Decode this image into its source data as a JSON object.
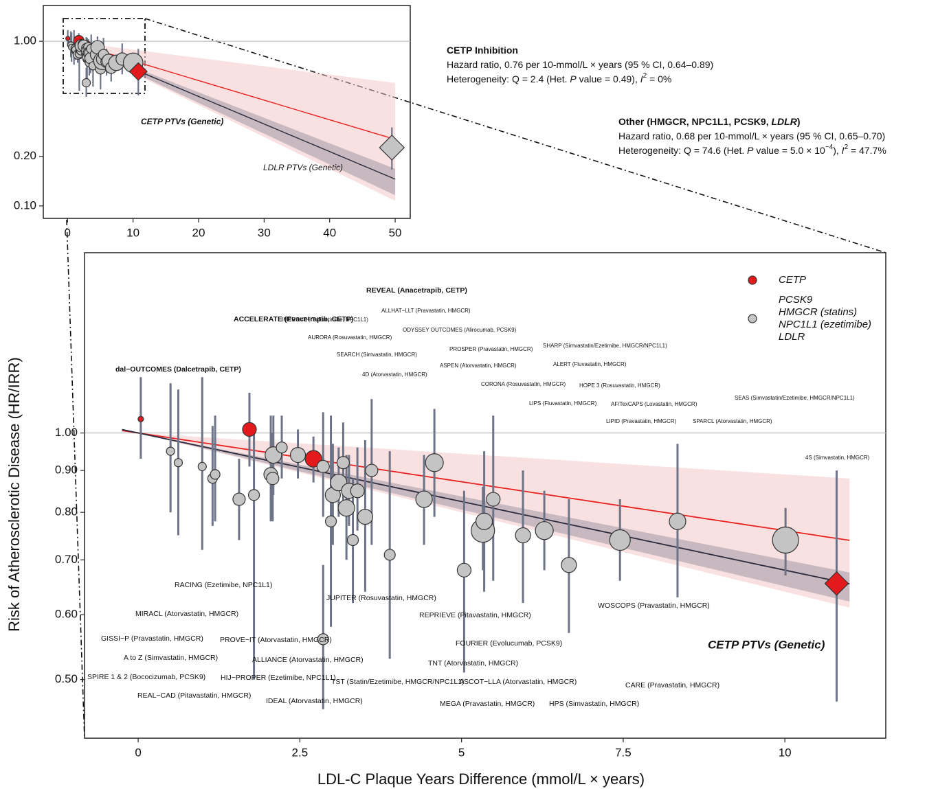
{
  "chart_data": [
    {
      "type": "scatter",
      "log_y": true,
      "xlim": [
        -3.7,
        52.3
      ],
      "ylim": [
        0.084,
        1.65
      ],
      "xticks": [
        0,
        10,
        20,
        30,
        40,
        50
      ],
      "yticks": [
        {
          "value": 1,
          "label": "1.00"
        },
        {
          "value": 0.2,
          "label": "0.20"
        },
        {
          "value": 0.1,
          "label": "0.10"
        }
      ],
      "reference_line": 1,
      "fit_xlim": [
        0,
        50
      ],
      "series": [
        {
          "name": "LDLR PTVs (Genetic)",
          "color": "#c4c4c4",
          "marker": "diamond",
          "x": [
            49.5
          ],
          "values": [
            0.226
          ],
          "lower": [
            0.166
          ],
          "upper": [
            0.3
          ],
          "sizes": [
            24
          ]
        }
      ],
      "fits": [
        {
          "hr": 0.76,
          "ci": [
            0.64,
            0.89
          ],
          "per": 10,
          "color": "#e8201f",
          "band_color": "#f3c3c3",
          "title": [
            "CETP Inhibition"
          ],
          "lines": [
            [
              "Hazard ratio, 0.76 per 10-mmol/L × years (95 % CI, 0.64–0.89)"
            ],
            [
              "Heterogeneity: Q = 2.4 (Het. ",
              {
                "text": "P",
                "style": "italic"
              },
              " value = 0.49), ",
              {
                "text": "I",
                "style": "italic"
              },
              {
                "text": "2",
                "style": "sup"
              },
              " = 0%"
            ]
          ]
        },
        {
          "hr": 0.68,
          "ci": [
            0.65,
            0.7
          ],
          "per": 10,
          "color": "#2b2b3d",
          "band_color": "#8a8a96",
          "title": [
            "Other (HMGCR, NPC1L1, PCSK9, ",
            {
              "text": "LDLR",
              "style": "italic"
            },
            ")"
          ],
          "lines": [
            [
              "Hazard ratio, 0.68 per 10-mmol/L × years (95 % CI, 0.65–0.70)"
            ],
            [
              "Heterogeneity: Q = 74.6 (Het. ",
              {
                "text": "P",
                "style": "italic"
              },
              " value = 5.0 × 10",
              {
                "text": "−4",
                "style": "sup"
              },
              "), ",
              {
                "text": "I",
                "style": "italic"
              },
              {
                "text": "2",
                "style": "sup"
              },
              " = 47.7%"
            ]
          ]
        }
      ]
    },
    {
      "type": "scatter",
      "log_y": true,
      "x_label": "LDL-C Plaque Years Difference (mmol/L × years)",
      "y_label": "Risk of Atherosclerotic Disease (HR/IRR)",
      "xlim": [
        -0.83,
        11.56
      ],
      "ylim": [
        0.424,
        1.66
      ],
      "xticks": [
        0,
        2.5,
        5,
        7.5,
        10
      ],
      "yticks": [
        {
          "value": 0.5,
          "label": "0.50"
        },
        {
          "value": 0.6,
          "label": "0.60"
        },
        {
          "value": 0.7,
          "label": "0.70"
        },
        {
          "value": 0.8,
          "label": "0.80"
        },
        {
          "value": 0.9,
          "label": "0.90"
        },
        {
          "value": 1,
          "label": "1.00"
        }
      ],
      "reference_line": 1,
      "fit_xlim": [
        -0.25,
        11
      ],
      "series": [
        {
          "name": "CETP",
          "color": "#e31a1c",
          "marker": "circle",
          "x": [
            0.04,
            1.72,
            2.71
          ],
          "values": [
            1.04,
            1.01,
            0.93
          ],
          "lower": [
            0.93,
            0.91,
            0.87
          ],
          "upper": [
            1.17,
            1.12,
            0.99
          ],
          "sizes": [
            4,
            10,
            12
          ]
        },
        {
          "name": [
            "PCSK9",
            "HMGCR (statins)",
            "NPC1L1 (ezetimibe)",
            "LDLR"
          ],
          "color": "#c4c4c4",
          "marker": "circle",
          "x": [
            0.5,
            0.62,
            0.99,
            1.15,
            1.19,
            1.56,
            1.79,
            2.05,
            2.08,
            2.09,
            2.22,
            2.47,
            2.86,
            2.98,
            3.01,
            3.1,
            3.17,
            3.22,
            3.26,
            3.32,
            3.39,
            3.51,
            3.61,
            3.89,
            4.42,
            4.58,
            5.04,
            5.33,
            5.35,
            5.49,
            5.95,
            6.28,
            6.66,
            7.45,
            8.34,
            10.01,
            2.86
          ],
          "values": [
            0.95,
            0.92,
            0.91,
            0.88,
            0.89,
            0.83,
            0.84,
            0.89,
            0.88,
            0.94,
            0.96,
            0.94,
            0.91,
            0.78,
            0.84,
            0.87,
            0.92,
            0.81,
            0.85,
            0.74,
            0.85,
            0.79,
            0.9,
            0.71,
            0.83,
            0.92,
            0.68,
            0.76,
            0.78,
            0.83,
            0.75,
            0.76,
            0.69,
            0.74,
            0.78,
            0.74,
            0.56
          ],
          "lower": [
            0.8,
            0.75,
            0.72,
            0.77,
            0.78,
            0.74,
            0.5,
            0.78,
            0.78,
            0.84,
            0.88,
            0.88,
            0.79,
            0.58,
            0.73,
            0.79,
            0.81,
            0.7,
            0.77,
            0.62,
            0.76,
            0.64,
            0.73,
            0.53,
            0.73,
            0.79,
            0.51,
            0.68,
            0.64,
            0.66,
            0.62,
            0.68,
            0.57,
            0.66,
            0.63,
            0.67,
            0.46
          ],
          "upper": [
            1.15,
            1.13,
            1.17,
            1.02,
            1.05,
            0.93,
            1.0,
            1.05,
            1.0,
            1.05,
            1.05,
            1.01,
            1.06,
            1.05,
            0.97,
            0.96,
            1.03,
            0.94,
            0.94,
            0.88,
            0.96,
            0.98,
            1.1,
            0.95,
            0.94,
            1.07,
            0.85,
            0.86,
            0.95,
            1.05,
            0.9,
            0.85,
            0.83,
            0.83,
            0.97,
            0.81,
            0.69
          ],
          "sizes": [
            6,
            6,
            6,
            7,
            7,
            9,
            8,
            10,
            9,
            12,
            8,
            11,
            9,
            8,
            11,
            12,
            9,
            12,
            11,
            8,
            10,
            11,
            9,
            8,
            12,
            13,
            10,
            17,
            12,
            10,
            11,
            13,
            11,
            15,
            12,
            19,
            8
          ]
        },
        {
          "name": "CETP PTVs (Genetic)",
          "legend": false,
          "color": "#e31a1c",
          "marker": "diamond",
          "x": [
            10.8
          ],
          "values": [
            0.655
          ],
          "lower": [
            0.47
          ],
          "upper": [
            0.9
          ],
          "sizes": [
            17
          ]
        }
      ],
      "annotations": [
        "dal−OUTCOMES (Dalcetrapib, CETP)",
        "ACCELERATE (Evacetrapib, CETP)",
        "REVEAL (Anacetrapib, CETP)",
        "IMPROVE−IT (Ezetimibe, NPC1L1)",
        "ALLHAT−LLT (Pravastatin, HMGCR)",
        "ODYSSEY OUTCOMES (Alirocumab, PCSK9)",
        "AURORA (Rosuvastatin, HMGCR)",
        "PROSPER (Pravastatin, HMGCR)",
        "SHARP (Simvastatin/Ezetimibe, HMGCR/NPC1L1)",
        "SEARCH (Simvastatin, HMGCR)",
        "ASPEN (Atorvastatin, HMGCR)",
        "ALERT (Fluvastatin, HMGCR)",
        "4D (Atorvastatin, HMGCR)",
        "CORONA (Rosuvastatin, HMGCR)",
        "HOPE 3 (Rosuvastatin, HMGCR)",
        "LIPS (Fluvastatin, HMGCR)",
        "AF/TexCAPS (Lovastatin, HMGCR)",
        "SEAS (Simvastatin/Ezetimibe, HMGCR/NPC1L1)",
        "LIPID (Pravastatin, HMGCR)",
        "SPARCL (Atorvastatin, HMGCR)",
        "4S (Simvastatin, HMGCR)",
        "RACING (Ezetimibe, NPC1L1)",
        "JUPITER (Rosuvastatin, HMGCR)",
        "MIRACL (Atorvastatin, HMGCR)",
        "REPRIEVE (Pitavastatin, HMGCR)",
        "WOSCOPS (Pravastatin, HMGCR)",
        "GISSI−P (Pravastatin, HMGCR)",
        "PROVE−IT (Atorvastatin, HMGCR)",
        "FOURIER (Evolucumab, PCSK9)",
        "A to Z (Simvastatin, HMGCR)",
        "ALLIANCE (Atorvastatin, HMGCR)",
        "TNT (Atorvastatin, HMGCR)",
        "SPIRE 1 & 2 (Bococizumab, PCSK9)",
        "HIJ−PROPER (Ezetimibe, NPC1L1)",
        "TST (Statin/Ezetimibe, HMGCR/NPC1L1)",
        "ASCOT−LLA (Atorvastatin, HMGCR)",
        "CARE (Pravastatin, HMGCR)",
        "REAL−CAD (Pitavastatin, HMGCR)",
        "IDEAL (Atorvastatin, HMGCR)",
        "MEGA (Pravastatin, HMGCR)",
        "HPS (Simvastatin, HMGCR)"
      ]
    }
  ]
}
